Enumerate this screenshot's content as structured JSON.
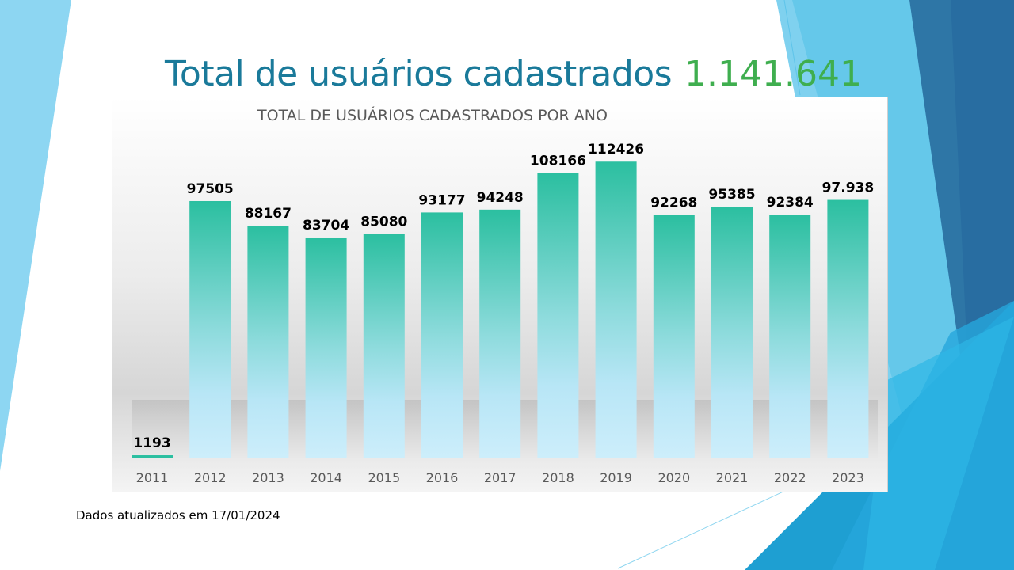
{
  "header": {
    "title": "Total de usuários cadastrados",
    "total": "1.141.641"
  },
  "footer": {
    "note": "Dados atualizados em 17/01/2024"
  },
  "colors": {
    "title": "#1a7a9a",
    "total": "#3fae4f",
    "bar_top": "#2bbfa0",
    "bar_bottom": "#c9ecf8"
  },
  "chart_data": {
    "type": "bar",
    "title": "TOTAL DE USUÁRIOS CADASTRADOS POR ANO",
    "xlabel": "",
    "ylabel": "",
    "categories": [
      "2011",
      "2012",
      "2013",
      "2014",
      "2015",
      "2016",
      "2017",
      "2018",
      "2019",
      "2020",
      "2021",
      "2022",
      "2023"
    ],
    "values": [
      1193,
      97505,
      88167,
      83704,
      85080,
      93177,
      94248,
      108166,
      112426,
      92268,
      95385,
      92384,
      97938
    ],
    "data_labels": [
      "1193",
      "97505",
      "88167",
      "83704",
      "85080",
      "93177",
      "94248",
      "108166",
      "112426",
      "92268",
      "95385",
      "92384",
      "97.938"
    ],
    "ylim": [
      0,
      120000
    ],
    "grid": false,
    "legend": "none"
  }
}
